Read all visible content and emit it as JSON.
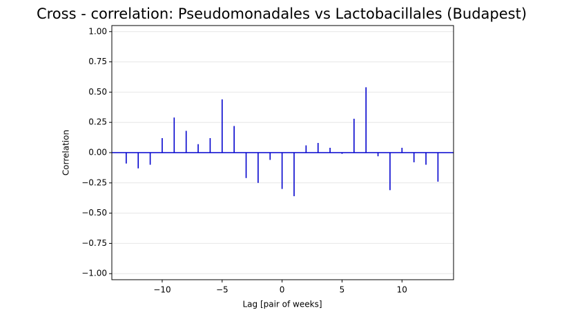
{
  "chart_data": {
    "type": "stem",
    "title": "Cross - correlation: Pseudomonadales vs Lactobacillales (Budapest)",
    "x_label": "Lag [pair of weeks]",
    "y_label": "Correlation",
    "x": [
      -13,
      -12,
      -11,
      -10,
      -9,
      -8,
      -7,
      -6,
      -5,
      -4,
      -3,
      -2,
      -1,
      0,
      1,
      2,
      3,
      4,
      5,
      6,
      7,
      8,
      9,
      10,
      11,
      12,
      13
    ],
    "series": [
      {
        "color": "#0000cd",
        "values": [
          -0.09,
          -0.13,
          -0.1,
          0.12,
          0.29,
          0.18,
          0.07,
          0.12,
          0.44,
          0.22,
          -0.21,
          -0.25,
          -0.06,
          -0.3,
          -0.36,
          0.06,
          0.08,
          0.04,
          -0.01,
          0.28,
          0.54,
          -0.03,
          -0.31,
          0.04,
          -0.08,
          -0.1,
          -0.24
        ]
      }
    ],
    "baseline_color": "#0000cd",
    "xlim": [
      -14.2,
      14.3
    ],
    "ylim": [
      -1.05,
      1.05
    ],
    "xticks": [
      {
        "value": -10,
        "label": "−10"
      },
      {
        "value": -5,
        "label": "−5"
      },
      0,
      5,
      10
    ],
    "yticks": [
      {
        "value": -1,
        "label": "−1.00"
      },
      {
        "value": -0.75,
        "label": "−0.75"
      },
      {
        "value": -0.5,
        "label": "−0.50"
      },
      {
        "value": -0.25,
        "label": "−0.25"
      },
      {
        "value": 0,
        "label": "0.00"
      },
      {
        "value": 0.25,
        "label": "0.25"
      },
      {
        "value": 0.5,
        "label": "0.50"
      },
      {
        "value": 0.75,
        "label": "0.75"
      },
      {
        "value": 1,
        "label": "1.00"
      }
    ],
    "grid": "y"
  }
}
